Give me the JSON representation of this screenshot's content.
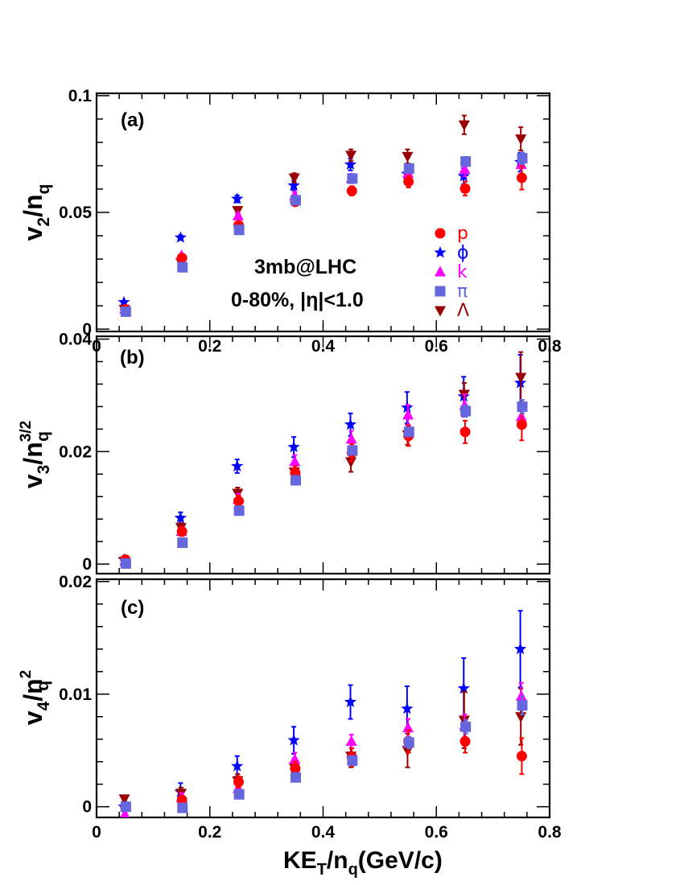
{
  "figure": {
    "x_axis_label": {
      "main": "KE",
      "sub": "T",
      "mid": "/n",
      "sub2": "q",
      "end": "(GeV/c)"
    },
    "annotation_line1": "3mb@LHC",
    "annotation_line2": "0-80%,  |η|<1.0"
  },
  "legend": [
    {
      "species": "p",
      "label": "p",
      "marker": "circle",
      "color": "#ff0000"
    },
    {
      "species": "phi",
      "label": "ϕ",
      "marker": "star",
      "color": "#0000ff"
    },
    {
      "species": "k",
      "label": "k",
      "marker": "triangle-up",
      "color": "#ff00ff"
    },
    {
      "species": "pi",
      "label": "π",
      "marker": "square",
      "color": "#6666dd"
    },
    {
      "species": "lambda",
      "label": "Λ",
      "marker": "triangle-down",
      "color": "#990000"
    }
  ],
  "chart_data": [
    {
      "type": "scatter",
      "panel": "(a)",
      "ylabel": {
        "main": "v",
        "sub": "2",
        "mid": "/n",
        "sub2": "q",
        "sup": ""
      },
      "xlim": [
        0,
        0.8
      ],
      "ylim": [
        -0.001,
        0.101
      ],
      "x_ticks": [
        0,
        0.2,
        0.4,
        0.6,
        0.8
      ],
      "x_tick_labels": [
        "0",
        "0.2",
        "0.4",
        "0.6",
        "0.8"
      ],
      "y_ticks": [
        0,
        0.05,
        0.1
      ],
      "y_tick_labels": [
        "0",
        "0.05",
        "0.1"
      ],
      "x": [
        0.05,
        0.15,
        0.25,
        0.35,
        0.45,
        0.55,
        0.65,
        0.75
      ],
      "series": [
        {
          "species": "phi",
          "y": [
            0.0115,
            0.0392,
            0.0558,
            0.0615,
            0.0705,
            0.0665,
            0.0655,
            0.0715
          ],
          "err": [
            0.0005,
            0.001,
            0.0015,
            0.002,
            0.0025,
            0.003,
            0.0035,
            0.004
          ]
        },
        {
          "species": "lambda",
          "y": [
            0.0085,
            0.0285,
            0.0508,
            0.0648,
            0.0745,
            0.074,
            0.0875,
            0.0815
          ],
          "err": [
            0.0003,
            0.001,
            0.0015,
            0.002,
            0.0025,
            0.003,
            0.004,
            0.005
          ]
        },
        {
          "species": "k",
          "y": [
            0.0085,
            0.0315,
            0.0485,
            0.0572,
            0.0645,
            0.0668,
            0.0685,
            0.0705
          ],
          "err": [
            0.0003,
            0.0008,
            0.001,
            0.0015,
            0.002,
            0.0025,
            0.003,
            0.004
          ]
        },
        {
          "species": "p",
          "y": [
            0.0085,
            0.0305,
            0.0445,
            0.0545,
            0.0592,
            0.0632,
            0.0602,
            0.0648
          ],
          "err": [
            0.0003,
            0.0008,
            0.001,
            0.0015,
            0.002,
            0.0025,
            0.003,
            0.005
          ]
        },
        {
          "species": "pi",
          "y": [
            0.0075,
            0.0265,
            0.0425,
            0.0552,
            0.0645,
            0.0688,
            0.0718,
            0.0732
          ],
          "err": [
            0.0003,
            0.0005,
            0.0008,
            0.001,
            0.0012,
            0.0015,
            0.002,
            0.0025
          ]
        }
      ]
    },
    {
      "type": "scatter",
      "panel": "(b)",
      "ylabel": {
        "main": "v",
        "sub": "3",
        "mid": "/n",
        "sub2": "q",
        "sup": "3/2"
      },
      "xlim": [
        0,
        0.8
      ],
      "ylim": [
        -0.0017,
        0.0405
      ],
      "x_ticks": [
        0,
        0.2,
        0.4,
        0.6,
        0.8
      ],
      "x_tick_labels": [],
      "y_ticks": [
        0,
        0.02,
        0.04
      ],
      "y_tick_labels": [
        "0",
        "0.02",
        "0.04"
      ],
      "x": [
        0.05,
        0.15,
        0.25,
        0.35,
        0.45,
        0.55,
        0.65,
        0.75
      ],
      "series": [
        {
          "species": "phi",
          "y": [
            0.0008,
            0.0082,
            0.0174,
            0.0208,
            0.0248,
            0.0278,
            0.0298,
            0.0322
          ],
          "err": [
            0.0003,
            0.001,
            0.0012,
            0.0018,
            0.002,
            0.0028,
            0.0035,
            0.005
          ]
        },
        {
          "species": "lambda",
          "y": [
            0.0005,
            0.0065,
            0.0126,
            0.0164,
            0.0182,
            0.023,
            0.0302,
            0.0332
          ],
          "err": [
            0.0003,
            0.0008,
            0.001,
            0.0012,
            0.0018,
            0.0018,
            0.002,
            0.0045
          ]
        },
        {
          "species": "k",
          "y": [
            0.0005,
            0.0058,
            0.0115,
            0.0182,
            0.0222,
            0.0265,
            0.0282,
            0.0262
          ],
          "err": [
            0.0003,
            0.0008,
            0.001,
            0.0012,
            0.0015,
            0.0018,
            0.002,
            0.002
          ]
        },
        {
          "species": "p",
          "y": [
            0.0008,
            0.0058,
            0.0112,
            0.0162,
            0.0198,
            0.0228,
            0.0235,
            0.0248
          ],
          "err": [
            0.0003,
            0.0008,
            0.001,
            0.0012,
            0.0015,
            0.0018,
            0.002,
            0.0028
          ]
        },
        {
          "species": "pi",
          "y": [
            0.0001,
            0.0038,
            0.0095,
            0.0149,
            0.0202,
            0.0235,
            0.0272,
            0.028
          ],
          "err": [
            0.0002,
            0.0003,
            0.0004,
            0.0005,
            0.0006,
            0.0008,
            0.001,
            0.0012
          ]
        }
      ]
    },
    {
      "type": "scatter",
      "panel": "(c)",
      "ylabel": {
        "main": "v",
        "sub": "4",
        "mid": "/n",
        "sub2": "q",
        "sup": "2"
      },
      "xlim": [
        0,
        0.8
      ],
      "ylim": [
        -0.00095,
        0.0202
      ],
      "x_ticks": [
        0,
        0.2,
        0.4,
        0.6,
        0.8
      ],
      "x_tick_labels": [
        "0",
        "0.2",
        "0.4",
        "0.6",
        "0.8"
      ],
      "y_ticks": [
        0,
        0.01,
        0.02
      ],
      "y_tick_labels": [
        "0",
        "0.01",
        "0.02"
      ],
      "x": [
        0.05,
        0.15,
        0.25,
        0.35,
        0.45,
        0.55,
        0.65,
        0.75
      ],
      "series": [
        {
          "species": "phi",
          "y": [
            0.0,
            0.0013,
            0.0036,
            0.0059,
            0.0093,
            0.0087,
            0.0105,
            0.014
          ],
          "err": [
            0.0002,
            0.0008,
            0.0009,
            0.0012,
            0.0015,
            0.002,
            0.0027,
            0.0034
          ]
        },
        {
          "species": "lambda",
          "y": [
            0.0007,
            0.0012,
            0.0023,
            0.0035,
            0.0045,
            0.005,
            0.0077,
            0.008
          ],
          "err": [
            0.0002,
            0.0005,
            0.0006,
            0.0008,
            0.001,
            0.0015,
            0.0025,
            0.0025
          ]
        },
        {
          "species": "k",
          "y": [
            -0.0007,
            0.0008,
            0.0016,
            0.0042,
            0.0058,
            0.007,
            0.0072,
            0.0098
          ],
          "err": [
            0.0002,
            0.0004,
            0.0005,
            0.0006,
            0.0006,
            0.0008,
            0.001,
            0.0012
          ]
        },
        {
          "species": "p",
          "y": [
            0.0,
            0.0006,
            0.0022,
            0.0034,
            0.0044,
            0.0058,
            0.0058,
            0.0045
          ],
          "err": [
            0.0002,
            0.0003,
            0.0005,
            0.0006,
            0.0008,
            0.001,
            0.001,
            0.0016
          ]
        },
        {
          "species": "pi",
          "y": [
            0.0,
            -0.0001,
            0.0011,
            0.0026,
            0.0041,
            0.0057,
            0.0071,
            0.009
          ],
          "err": [
            0.0001,
            0.0002,
            0.0002,
            0.0003,
            0.0004,
            0.0005,
            0.0006,
            0.0008
          ]
        }
      ]
    }
  ]
}
